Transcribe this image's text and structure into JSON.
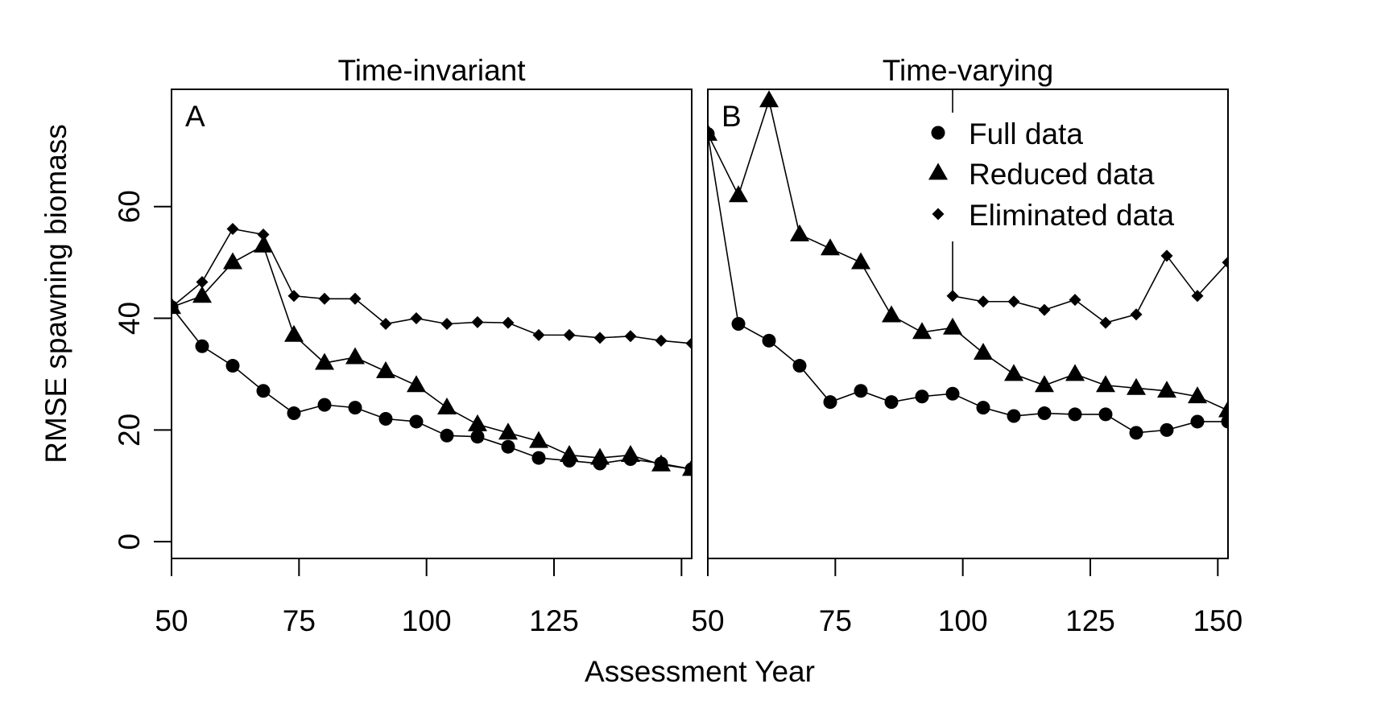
{
  "chart_data": {
    "type": "line",
    "xlabel": "Assessment Year",
    "ylabel": "RMSE spawning biomass",
    "legend": {
      "placement": "top-right of panel B",
      "entries": [
        {
          "label": "Full data",
          "marker": "circle"
        },
        {
          "label": "Reduced data",
          "marker": "triangle"
        },
        {
          "label": "Eliminated data",
          "marker": "diamond"
        }
      ]
    },
    "y_ticks": [
      0,
      20,
      40,
      60
    ],
    "x_ticks": [
      {
        "value": 50,
        "label": "50"
      },
      {
        "value": 75,
        "label": "75"
      },
      {
        "value": 100,
        "label": "100"
      },
      {
        "value": 125,
        "label": "125"
      },
      {
        "value": 150,
        "label": "150"
      }
    ],
    "ylim": [
      -3,
      81
    ],
    "xlim": [
      50,
      152
    ],
    "panels": [
      {
        "letter": "A",
        "title": "Time-invariant",
        "xlim": [
          50,
          152
        ],
        "x_tick_labels_shown": [
          "50",
          "75",
          "100",
          "125"
        ],
        "series": [
          {
            "name": "Full data",
            "marker": "circle",
            "x": [
              50,
              56,
              62,
              68,
              74,
              80,
              86,
              92,
              98,
              104,
              110,
              116,
              122,
              128,
              134,
              140,
              146,
              152
            ],
            "y": [
              42,
              35,
              31.5,
              27,
              23,
              24.5,
              24,
              22,
              21.5,
              19,
              18.8,
              17,
              15,
              14.5,
              14,
              14.8,
              14,
              13
            ]
          },
          {
            "name": "Reduced data",
            "marker": "triangle",
            "x": [
              50,
              56,
              62,
              68,
              74,
              80,
              86,
              92,
              98,
              104,
              110,
              116,
              122,
              128,
              134,
              140,
              146,
              152
            ],
            "y": [
              42,
              44,
              50,
              53,
              37,
              32,
              33,
              30.5,
              28,
              24,
              21,
              19.5,
              18,
              15.5,
              15,
              15.5,
              13.8,
              13
            ]
          },
          {
            "name": "Eliminated data",
            "marker": "diamond",
            "x": [
              50,
              56,
              62,
              68,
              74,
              80,
              86,
              92,
              98,
              104,
              110,
              116,
              122,
              128,
              134,
              140,
              146,
              152
            ],
            "y": [
              42,
              46.5,
              56,
              55,
              44,
              43.5,
              43.5,
              39,
              40,
              39,
              39.3,
              39.2,
              37,
              37,
              36.5,
              36.8,
              36,
              35.5
            ]
          }
        ]
      },
      {
        "letter": "B",
        "title": "Time-varying",
        "xlim": [
          50,
          152
        ],
        "x_tick_labels_shown": [
          "50",
          "75",
          "100",
          "125",
          "150"
        ],
        "series": [
          {
            "name": "Full data",
            "marker": "circle",
            "x": [
              50,
              56,
              62,
              68,
              74,
              80,
              86,
              92,
              98,
              104,
              110,
              116,
              122,
              128,
              134,
              140,
              146,
              152
            ],
            "y": [
              73,
              39,
              36,
              31.5,
              25,
              27,
              25,
              26,
              26.5,
              24,
              22.5,
              23,
              22.8,
              22.8,
              19.5,
              20,
              21.5,
              21.5
            ]
          },
          {
            "name": "Reduced data",
            "marker": "triangle",
            "x": [
              50,
              56,
              62,
              68,
              74,
              80,
              86,
              92,
              98,
              104,
              110,
              116,
              122,
              128,
              134,
              140,
              146,
              152
            ],
            "y": [
              73,
              62,
              79,
              55,
              52.5,
              50,
              40.5,
              37.5,
              38.3,
              33.8,
              30,
              28,
              30,
              28,
              27.5,
              27,
              26,
              23.5
            ]
          },
          {
            "name": "Eliminated data",
            "marker": "diamond",
            "x": [
              51.5,
              98,
              98,
              104,
              110,
              116,
              122,
              128,
              134,
              140,
              146,
              152
            ],
            "y": [
              81,
              81,
              44,
              43,
              43,
              41.5,
              43.3,
              39.2,
              40.7,
              51.2,
              44,
              50
            ]
          }
        ]
      }
    ]
  }
}
